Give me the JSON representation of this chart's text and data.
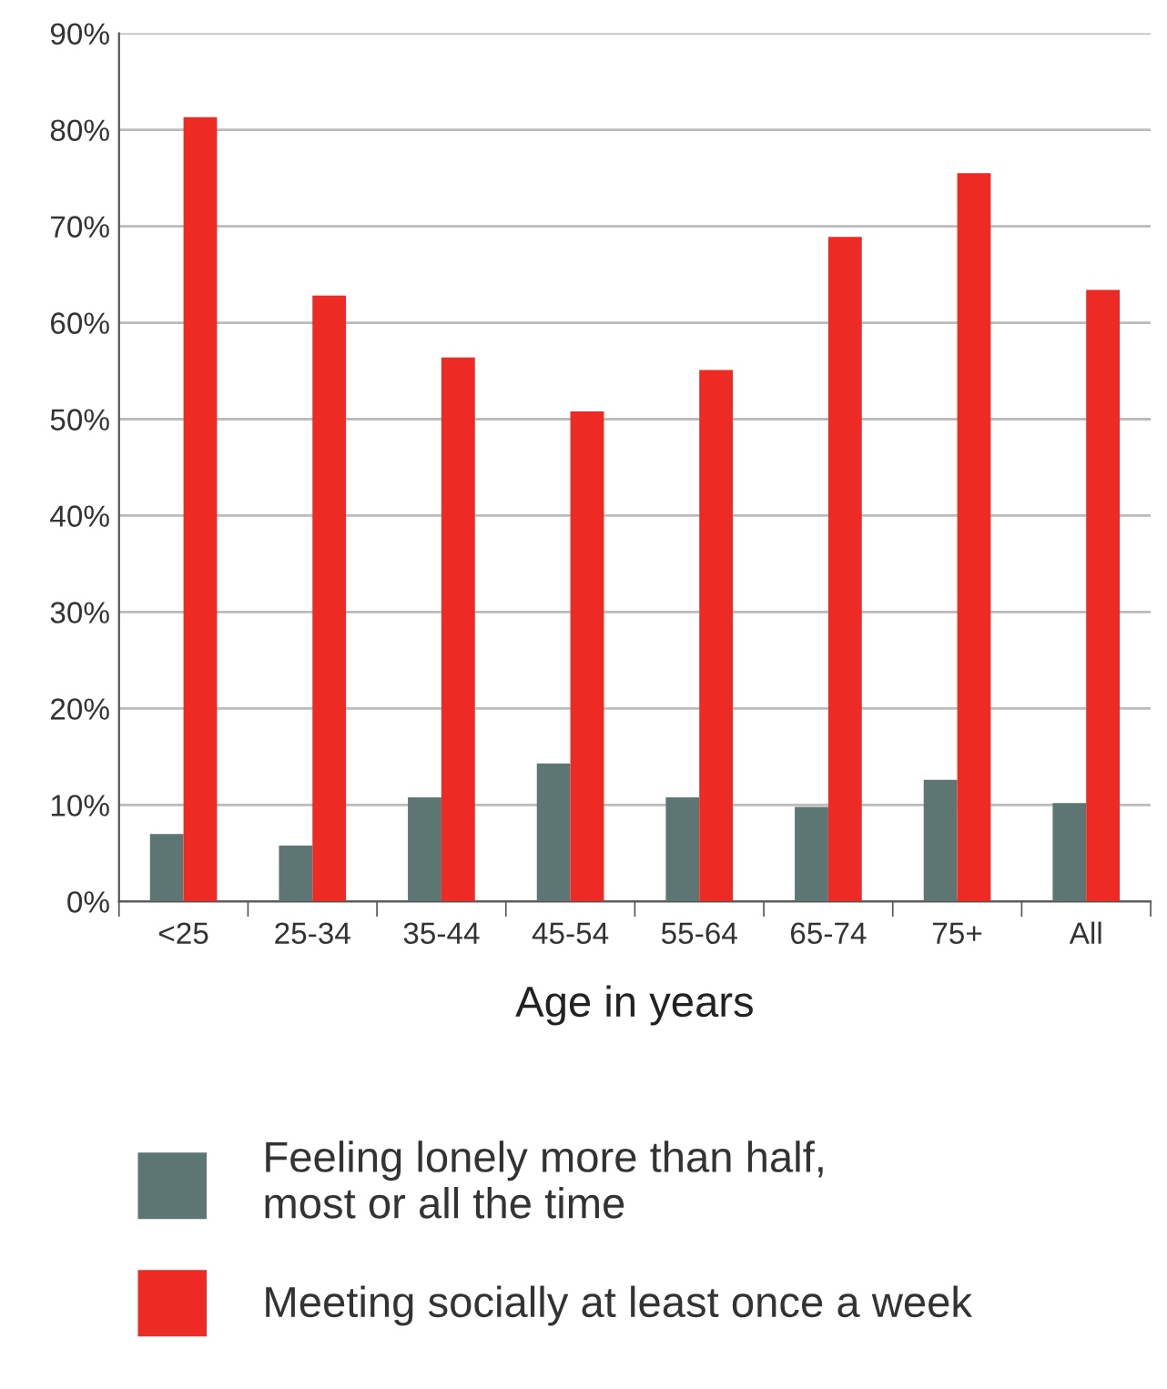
{
  "chart_data": {
    "type": "bar",
    "xlabel": "Age in years",
    "categories": [
      "<25",
      "25-34",
      "35-44",
      "45-54",
      "55-64",
      "65-74",
      "75+",
      "All"
    ],
    "series": [
      {
        "name": "Feeling lonely more than half,\nmost or all the time",
        "color": "#5e7673",
        "values": [
          7.0,
          5.8,
          10.8,
          14.3,
          10.8,
          9.8,
          12.6,
          10.2
        ]
      },
      {
        "name": "Meeting socially at least once a week",
        "color": "#ee2a24",
        "values": [
          81.3,
          62.8,
          56.4,
          50.8,
          55.1,
          68.9,
          75.5,
          63.4
        ]
      }
    ],
    "ylim": [
      0,
      90
    ],
    "yticks": [
      {
        "value": 0,
        "label": "0%"
      },
      {
        "value": 10,
        "label": "10%"
      },
      {
        "value": 20,
        "label": "20%"
      },
      {
        "value": 30,
        "label": "30%"
      },
      {
        "value": 40,
        "label": "40%"
      },
      {
        "value": 50,
        "label": "50%"
      },
      {
        "value": 60,
        "label": "60%"
      },
      {
        "value": 70,
        "label": "70%"
      },
      {
        "value": 80,
        "label": "80%"
      },
      {
        "value": 90,
        "label": "90%"
      }
    ],
    "grid": "y",
    "legend": "bottom"
  }
}
